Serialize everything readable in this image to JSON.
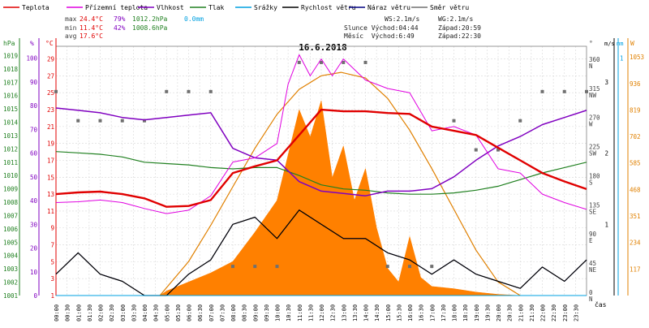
{
  "chart_data": {
    "type": "line",
    "title": "16.6.2018",
    "legend": [
      {
        "label": "Teplota",
        "color": "#e00000"
      },
      {
        "label": "Přízemní teplota",
        "color": "#e000e0"
      },
      {
        "label": "Vlhkost",
        "color": "#8000c0"
      },
      {
        "label": "Tlak",
        "color": "#208020"
      },
      {
        "label": "Srážky",
        "color": "#00a0e0"
      },
      {
        "label": "Rychlost větru",
        "color": "#000000"
      },
      {
        "label": "Náraz větru",
        "color": "#000080"
      },
      {
        "label": "Směr větru",
        "color": "#707070"
      }
    ],
    "stats": {
      "max": {
        "label": "max",
        "temp": "24.4°C",
        "hum": "79%",
        "press": "1012.2hPa",
        "rain": "0.0mm"
      },
      "min": {
        "label": "min",
        "temp": "11.4°C",
        "hum": "42%",
        "press": "1008.6hPa"
      },
      "avg": {
        "label": "avg",
        "temp": "17.6°C"
      }
    },
    "info": {
      "ws": "WS:2.1m/s",
      "wg": "WG:2.1m/s",
      "sun": "Slunce Východ:04:44",
      "sunset": "Západ:20:59",
      "moon": "Měsíc  Východ:6:49",
      "moonset": "Západ:22:30"
    },
    "axes": {
      "hpa": {
        "unit": "hPa",
        "ticks": [
          1001,
          1002,
          1003,
          1004,
          1005,
          1006,
          1007,
          1008,
          1009,
          1010,
          1011,
          1012,
          1013,
          1014,
          1015,
          1016,
          1017,
          1018,
          1019
        ]
      },
      "pct": {
        "unit": "%",
        "ticks": [
          0,
          10,
          20,
          30,
          40,
          50,
          60,
          70,
          80,
          90,
          100
        ]
      },
      "degc": {
        "unit": "°C",
        "ticks": [
          1,
          3,
          5,
          7,
          9,
          11,
          13,
          15,
          17,
          19,
          21,
          23,
          25,
          27,
          29
        ]
      },
      "dir": {
        "unit": "°",
        "ticks": [
          {
            "v": 0,
            "t": "0",
            "n": "N"
          },
          {
            "v": 45,
            "t": "45",
            "n": "NE"
          },
          {
            "v": 90,
            "t": "90",
            "n": "E"
          },
          {
            "v": 135,
            "t": "135",
            "n": "SE"
          },
          {
            "v": 180,
            "t": "180",
            "n": "S"
          },
          {
            "v": 225,
            "t": "225",
            "n": "SW"
          },
          {
            "v": 270,
            "t": "270",
            "n": "W"
          },
          {
            "v": 315,
            "t": "315",
            "n": "NW"
          },
          {
            "v": 360,
            "t": "360",
            "n": "N"
          }
        ]
      },
      "ms": {
        "unit": "m/s",
        "ticks": [
          1,
          2,
          3
        ]
      },
      "mm": {
        "unit": "mm",
        "ticks": [
          1
        ]
      },
      "wm2": {
        "unit": "W",
        "ticks": [
          117,
          234,
          351,
          468,
          585,
          702,
          819,
          936,
          1053
        ]
      },
      "xlabel": "čas",
      "xticks": [
        "00:00",
        "00:30",
        "01:00",
        "01:30",
        "02:00",
        "02:30",
        "03:00",
        "03:30",
        "04:00",
        "04:30",
        "05:00",
        "05:30",
        "06:00",
        "06:30",
        "07:00",
        "07:30",
        "08:00",
        "08:30",
        "09:00",
        "09:30",
        "10:00",
        "10:30",
        "11:00",
        "11:30",
        "12:00",
        "12:30",
        "13:00",
        "13:30",
        "14:00",
        "14:30",
        "15:00",
        "15:30",
        "16:00",
        "16:30",
        "17:00",
        "17:30",
        "18:00",
        "18:30",
        "19:00",
        "19:30",
        "20:00",
        "20:30",
        "21:00",
        "21:30",
        "22:00",
        "22:30",
        "23:00",
        "23:30"
      ]
    },
    "series": [
      {
        "name": "Teplota",
        "unit": "°C",
        "color": "#e00000",
        "x": [
          0,
          1,
          2,
          3,
          4,
          5,
          6,
          7,
          8,
          9,
          10,
          11,
          12,
          13,
          14,
          15,
          16,
          17,
          18,
          19,
          20,
          21,
          22,
          23,
          24
        ],
        "y": [
          13.0,
          13.2,
          13.3,
          13.0,
          12.5,
          11.5,
          11.6,
          12.3,
          15.5,
          16.3,
          17.0,
          20.0,
          23.0,
          22.8,
          22.8,
          22.6,
          22.5,
          21.0,
          20.5,
          20.0,
          18.5,
          17.0,
          15.5,
          14.5,
          13.6
        ]
      },
      {
        "name": "Přízemní teplota",
        "unit": "°C",
        "color": "#e000e0",
        "x": [
          0,
          1,
          2,
          3,
          4,
          5,
          6,
          7,
          8,
          9,
          10,
          10.5,
          11,
          11.5,
          12,
          12.5,
          13,
          14,
          15,
          16,
          17,
          18,
          19,
          20,
          21,
          22,
          23,
          24
        ],
        "y": [
          12.0,
          12.1,
          12.3,
          12.0,
          11.3,
          10.7,
          11.1,
          12.8,
          16.8,
          17.3,
          19.0,
          26.0,
          29.5,
          27.0,
          29.0,
          27.0,
          29.0,
          26.5,
          25.5,
          25.0,
          20.5,
          21.0,
          20.0,
          16.0,
          15.5,
          13.0,
          12.0,
          11.2
        ]
      },
      {
        "name": "Vlhkost",
        "unit": "%",
        "color": "#8000c0",
        "x": [
          0,
          1,
          2,
          3,
          4,
          5,
          6,
          7,
          8,
          9,
          10,
          11,
          12,
          13,
          14,
          15,
          16,
          17,
          18,
          19,
          20,
          21,
          22,
          23,
          24
        ],
        "y": [
          79,
          78,
          77,
          75,
          74,
          75,
          76,
          77,
          62,
          58,
          57,
          48,
          44,
          43,
          42,
          44,
          44,
          45,
          50,
          57,
          63,
          67,
          72,
          75,
          78
        ]
      },
      {
        "name": "Tlak",
        "unit": "hPa",
        "color": "#208020",
        "x": [
          0,
          1,
          2,
          3,
          4,
          5,
          6,
          7,
          8,
          9,
          10,
          11,
          12,
          13,
          14,
          15,
          16,
          17,
          18,
          19,
          20,
          21,
          22,
          23,
          24
        ],
        "y": [
          1011.8,
          1011.7,
          1011.6,
          1011.4,
          1011.0,
          1010.9,
          1010.8,
          1010.6,
          1010.5,
          1010.6,
          1010.6,
          1010.0,
          1009.3,
          1009.0,
          1008.9,
          1008.7,
          1008.6,
          1008.6,
          1008.7,
          1008.9,
          1009.2,
          1009.7,
          1010.2,
          1010.6,
          1011.0
        ]
      },
      {
        "name": "Srážky",
        "unit": "mm",
        "color": "#00a0e0",
        "x": [
          0,
          24
        ],
        "y": [
          0,
          0
        ]
      },
      {
        "name": "Rychlost větru",
        "unit": "m/s",
        "color": "#000000",
        "x": [
          0,
          1,
          2,
          3,
          4,
          5,
          6,
          7,
          8,
          9,
          10,
          11,
          12,
          13,
          14,
          15,
          16,
          17,
          18,
          19,
          20,
          21,
          22,
          23,
          24
        ],
        "y": [
          0.3,
          0.6,
          0.3,
          0.2,
          0,
          0,
          0.3,
          0.5,
          1.0,
          1.1,
          0.8,
          1.2,
          1.0,
          0.8,
          0.8,
          0.6,
          0.5,
          0.3,
          0.5,
          0.3,
          0.2,
          0.1,
          0.4,
          0.2,
          0.5
        ]
      },
      {
        "name": "Náraz větru",
        "unit": "m/s",
        "color": "#000080",
        "x": [
          0,
          1,
          2,
          3,
          4,
          5,
          6,
          7,
          8,
          9,
          10,
          11,
          12,
          13,
          14,
          15,
          16,
          17,
          18,
          19,
          20,
          21,
          22,
          23,
          24
        ],
        "y": [
          0.3,
          0.6,
          0.3,
          0.2,
          0,
          0,
          0.3,
          0.5,
          1.0,
          1.1,
          0.8,
          1.2,
          1.0,
          0.8,
          0.8,
          0.6,
          0.5,
          0.3,
          0.5,
          0.3,
          0.2,
          0.1,
          0.4,
          0.2,
          0.5
        ]
      },
      {
        "name": "Směr větru",
        "unit": "°",
        "color": "#707070",
        "x": [
          0,
          1,
          2,
          3,
          4,
          5,
          6,
          7,
          8,
          9,
          10,
          11,
          12,
          13,
          14,
          15,
          16,
          17,
          18,
          19,
          20,
          21,
          22,
          23,
          24
        ],
        "y": [
          315,
          270,
          270,
          270,
          270,
          315,
          315,
          315,
          45,
          45,
          45,
          360,
          360,
          360,
          360,
          45,
          45,
          45,
          270,
          225,
          225,
          270,
          315,
          315,
          315
        ]
      },
      {
        "name": "Sluneční záření",
        "unit": "W/m2",
        "color": "#ff8000",
        "x": [
          4.7,
          5,
          6,
          7,
          8,
          9,
          10,
          10.5,
          11,
          11.5,
          12,
          12.5,
          13,
          13.5,
          14,
          14.5,
          15,
          15.5,
          16,
          16.5,
          17,
          18,
          19,
          20,
          21
        ],
        "y": [
          0,
          20,
          60,
          100,
          150,
          280,
          420,
          620,
          820,
          700,
          860,
          520,
          660,
          420,
          560,
          300,
          120,
          60,
          260,
          80,
          40,
          30,
          15,
          5,
          0
        ]
      },
      {
        "name": "Teoretické záření",
        "unit": "W/m2",
        "color": "#e08000",
        "x": [
          4.7,
          6,
          7,
          8,
          9,
          10,
          11,
          12,
          12.9,
          14,
          15,
          16,
          17,
          18,
          19,
          20,
          21
        ],
        "y": [
          0,
          150,
          310,
          480,
          650,
          800,
          910,
          970,
          985,
          960,
          870,
          730,
          560,
          380,
          200,
          60,
          0
        ]
      }
    ]
  }
}
